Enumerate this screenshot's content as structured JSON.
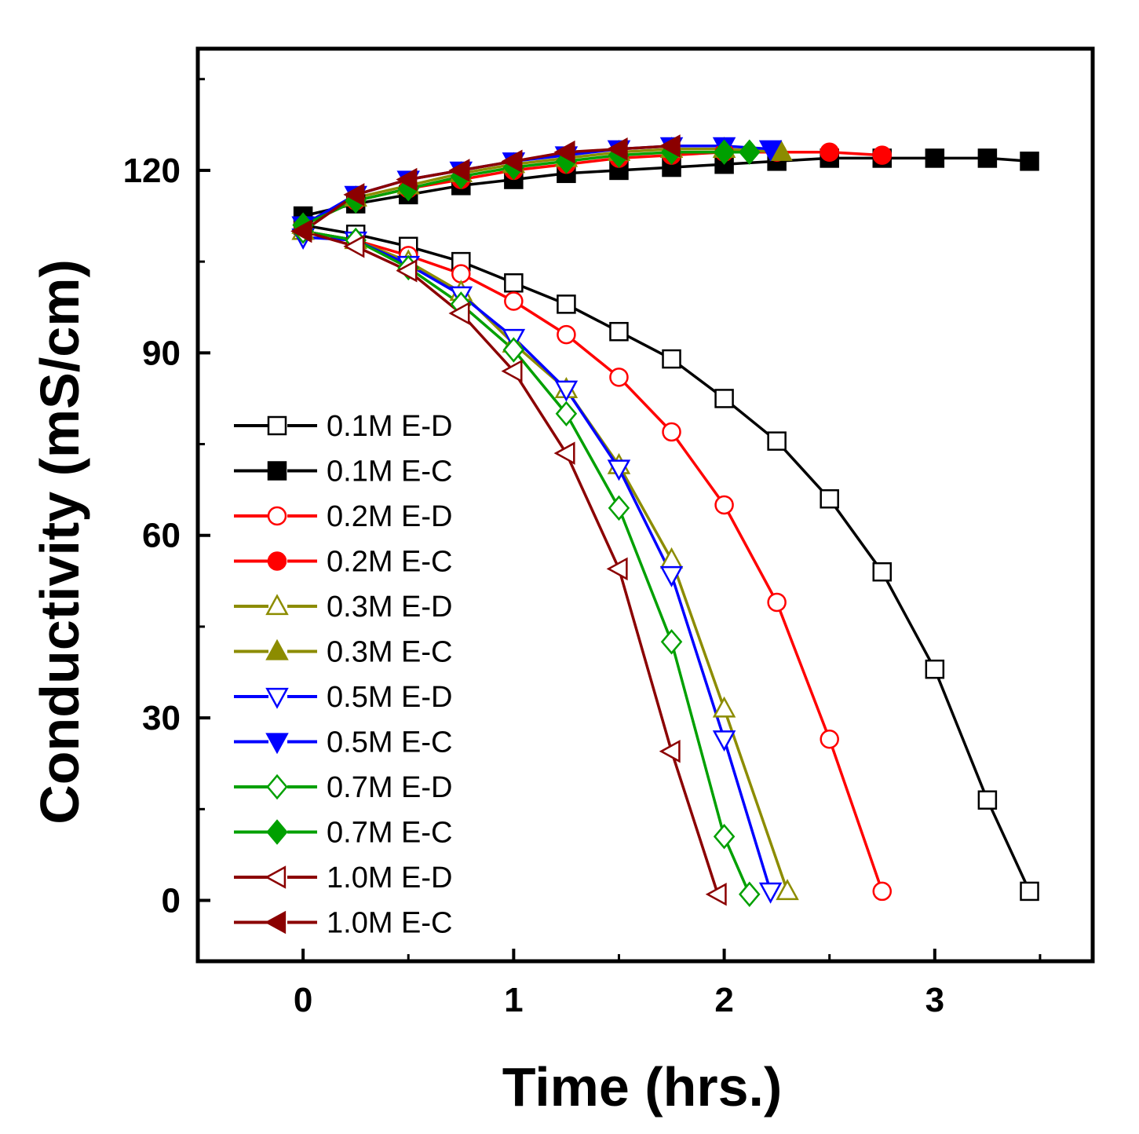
{
  "chart_data": {
    "type": "line",
    "title": "",
    "xlabel": "Time (hrs.)",
    "ylabel": "Conductivity (mS/cm)",
    "xlim": [
      -0.5,
      3.75
    ],
    "ylim": [
      -10,
      140
    ],
    "xticks": [
      0,
      1,
      2,
      3
    ],
    "yticks": [
      0,
      30,
      60,
      90,
      120
    ],
    "legend_position": "lower-left",
    "series": [
      {
        "name": "0.1M E-D",
        "color": "#000000",
        "marker": "square",
        "filled": false,
        "x": [
          0,
          0.25,
          0.5,
          0.75,
          1.0,
          1.25,
          1.5,
          1.75,
          2.0,
          2.25,
          2.5,
          2.75,
          3.0,
          3.25,
          3.45
        ],
        "y": [
          111,
          109.5,
          107.5,
          105,
          101.5,
          98,
          93.5,
          89,
          82.5,
          75.5,
          66,
          54,
          38,
          16.5,
          1.5
        ]
      },
      {
        "name": "0.1M E-C",
        "color": "#000000",
        "marker": "square",
        "filled": true,
        "x": [
          0,
          0.25,
          0.5,
          0.75,
          1.0,
          1.25,
          1.5,
          1.75,
          2.0,
          2.25,
          2.5,
          2.75,
          3.0,
          3.25,
          3.45
        ],
        "y": [
          112.5,
          114.5,
          116,
          117.5,
          118.5,
          119.5,
          120,
          120.5,
          121,
          121.5,
          122,
          122,
          122,
          122,
          121.5
        ]
      },
      {
        "name": "0.2M E-D",
        "color": "#ff0000",
        "marker": "circle",
        "filled": false,
        "x": [
          0,
          0.25,
          0.5,
          0.75,
          1.0,
          1.25,
          1.5,
          1.75,
          2.0,
          2.25,
          2.5,
          2.75
        ],
        "y": [
          110,
          108.5,
          106,
          103,
          98.5,
          93,
          86,
          77,
          65,
          49,
          26.5,
          1.5
        ]
      },
      {
        "name": "0.2M E-C",
        "color": "#ff0000",
        "marker": "circle",
        "filled": true,
        "x": [
          0,
          0.25,
          0.5,
          0.75,
          1.0,
          1.25,
          1.5,
          1.75,
          2.0,
          2.25,
          2.5,
          2.75
        ],
        "y": [
          111,
          115,
          117,
          118.5,
          120,
          121,
          122,
          122.5,
          123,
          123,
          123,
          122.5
        ]
      },
      {
        "name": "0.3M E-D",
        "color": "#8c8c00",
        "marker": "triangle-up",
        "filled": false,
        "x": [
          0,
          0.25,
          0.5,
          0.75,
          1.0,
          1.25,
          1.5,
          1.75,
          2.0,
          2.3
        ],
        "y": [
          110,
          108.5,
          105,
          100,
          91.5,
          84,
          71.5,
          56,
          31.5,
          1.5
        ]
      },
      {
        "name": "0.3M E-C",
        "color": "#8c8c00",
        "marker": "triangle-up",
        "filled": true,
        "x": [
          0,
          0.25,
          0.5,
          0.75,
          1.0,
          1.25,
          1.5,
          1.75,
          2.0,
          2.27
        ],
        "y": [
          111,
          115.5,
          117.5,
          119.5,
          121,
          122,
          123,
          123.5,
          123.5,
          123
        ]
      },
      {
        "name": "0.5M E-D",
        "color": "#0000ff",
        "marker": "triangle-down",
        "filled": false,
        "x": [
          0,
          0.25,
          0.5,
          0.75,
          1.0,
          1.25,
          1.5,
          1.75,
          2.0,
          2.22
        ],
        "y": [
          109,
          108.5,
          104.5,
          99.5,
          92.5,
          84,
          71,
          53.5,
          26.5,
          1.5
        ]
      },
      {
        "name": "0.5M E-C",
        "color": "#0000ff",
        "marker": "triangle-down",
        "filled": true,
        "x": [
          0,
          0.25,
          0.5,
          0.75,
          1.0,
          1.25,
          1.5,
          1.75,
          2.0,
          2.22
        ],
        "y": [
          111,
          116,
          118.5,
          120,
          121.5,
          122.5,
          123.5,
          124,
          124,
          123.5
        ]
      },
      {
        "name": "0.7M E-D",
        "color": "#00a000",
        "marker": "diamond",
        "filled": false,
        "x": [
          0,
          0.25,
          0.5,
          0.75,
          1.0,
          1.25,
          1.5,
          1.75,
          2.0,
          2.12
        ],
        "y": [
          110,
          108.5,
          104,
          98,
          90.5,
          80,
          64.5,
          42.5,
          10.5,
          1
        ]
      },
      {
        "name": "0.7M E-C",
        "color": "#00a000",
        "marker": "diamond",
        "filled": true,
        "x": [
          0,
          0.25,
          0.5,
          0.75,
          1.0,
          1.25,
          1.5,
          1.75,
          2.0,
          2.12
        ],
        "y": [
          111,
          115,
          117,
          119,
          120.5,
          121.5,
          122.5,
          123,
          123,
          123
        ]
      },
      {
        "name": "1.0M E-D",
        "color": "#8b0000",
        "marker": "triangle-left",
        "filled": false,
        "x": [
          0,
          0.25,
          0.5,
          0.75,
          1.0,
          1.25,
          1.5,
          1.75,
          1.97
        ],
        "y": [
          110,
          107.5,
          103.5,
          96.5,
          87,
          73.5,
          54.5,
          24.5,
          1
        ]
      },
      {
        "name": "1.0M E-C",
        "color": "#8b0000",
        "marker": "triangle-left",
        "filled": true,
        "x": [
          0,
          0.25,
          0.5,
          0.75,
          1.0,
          1.25,
          1.5,
          1.75
        ],
        "y": [
          110,
          116,
          118.5,
          120,
          121.5,
          123,
          123.5,
          124
        ]
      }
    ]
  }
}
